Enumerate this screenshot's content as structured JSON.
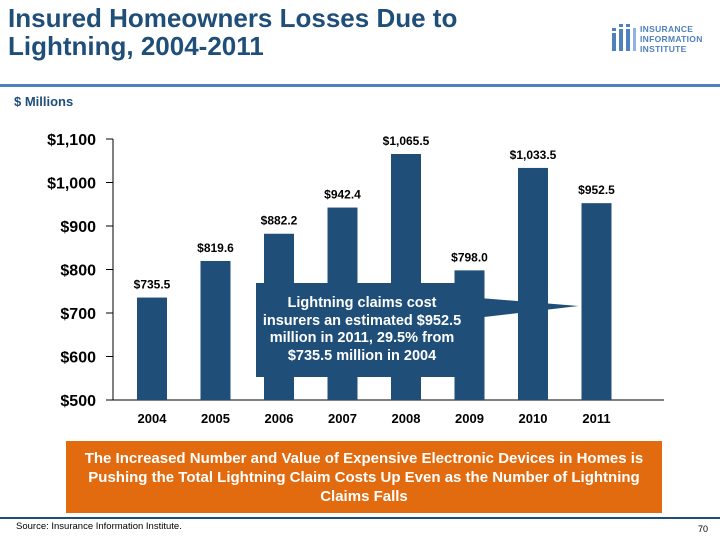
{
  "title": "Insured Homeowners Losses Due to Lightning, 2004-2011",
  "logo": {
    "lines": [
      "INSURANCE",
      "INFORMATION",
      "INSTITUTE"
    ],
    "icon": "iii-logo-icon",
    "color": "#4f81bd"
  },
  "unit_label": "$ Millions",
  "chart_data": {
    "type": "bar",
    "categories": [
      "2004",
      "2005",
      "2006",
      "2007",
      "2008",
      "2009",
      "2010",
      "2011"
    ],
    "values": [
      735.5,
      819.6,
      882.2,
      942.4,
      1065.5,
      798.0,
      1033.5,
      952.5
    ],
    "value_labels": [
      "$735.5",
      "$819.6",
      "$882.2",
      "$942.4",
      "$1,065.5",
      "$798.0",
      "$1,033.5",
      "$952.5"
    ],
    "ylim": [
      500,
      1100
    ],
    "yticks": [
      500,
      600,
      700,
      800,
      900,
      1000,
      1100
    ],
    "ytick_labels": [
      "$500",
      "$600",
      "$700",
      "$800",
      "$900",
      "$1,000",
      "$1,100"
    ],
    "bar_color": "#1f4e79",
    "grid": false
  },
  "callout": "Lightning claims cost insurers an estimated $952.5 million in 2011, 29.5% from $735.5 million in 2004",
  "banner": "The Increased Number and Value of Expensive Electronic Devices in Homes is Pushing the Total Lightning Claim Costs Up Even as the Number of Lightning Claims Falls",
  "source": "Source: Insurance Information Institute.",
  "page_number": "70"
}
